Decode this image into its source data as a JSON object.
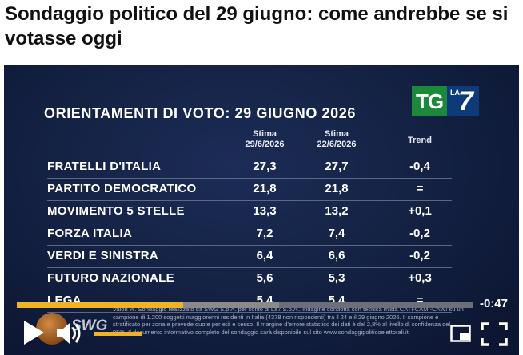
{
  "article": {
    "headline": "Sondaggio politico del 29 giugno: come andrebbe se si votasse oggi"
  },
  "video": {
    "logo_tg": "TG",
    "logo_la": "LA",
    "logo_7": "7",
    "poll_title": "ORIENTAMENTI DI VOTO: 29 GIUGNO 2026",
    "columns": [
      {
        "line1": "Stima",
        "line2": "29/6/2026"
      },
      {
        "line1": "Stima",
        "line2": "22/6/2026"
      },
      {
        "line1": "Trend",
        "line2": ""
      }
    ],
    "rows": [
      {
        "party": "FRATELLI D'ITALIA",
        "current": "27,3",
        "previous": "27,7",
        "trend": "-0,4"
      },
      {
        "party": "PARTITO DEMOCRATICO",
        "current": "21,8",
        "previous": "21,8",
        "trend": "="
      },
      {
        "party": "MOVIMENTO 5 STELLE",
        "current": "13,3",
        "previous": "13,2",
        "trend": "+0,1"
      },
      {
        "party": "FORZA ITALIA",
        "current": "7,2",
        "previous": "7,4",
        "trend": "-0,2"
      },
      {
        "party": "VERDI E SINISTRA",
        "current": "6,4",
        "previous": "6,6",
        "trend": "-0,2"
      },
      {
        "party": "FUTURO NAZIONALE",
        "current": "5,6",
        "previous": "5,3",
        "trend": "+0,3"
      },
      {
        "party": "LEGA",
        "current": "5,4",
        "previous": "5,4",
        "trend": "="
      }
    ],
    "note": "Valori %. Sondaggio realizzato da SWG S.p.A. per conto di La7 S.p.A.. Indagine condotta con tecnica mista CATI-CAMI-CAWI su un campione di 1.200 soggetti maggiorenni residenti in Italia (4378 non rispondenti) tra il 24 e il 29 giugno 2026. Il campione è stratificato per zona e prevede quote per età e sesso. Il margine d'errore statistico dei dati è del 2,8% al livello di confidenza del 95%. Il documento informativo completo del sondaggio sarà disponibile sul sito www.sondaggipoliticoelettorali.it.",
    "swg_label": "SWG"
  },
  "player": {
    "time_remaining": "-0:47",
    "progress_played": 0.365,
    "progress_buffered": 0.575,
    "volume_level": 1.0,
    "accent_color": "#f0b323",
    "icons": [
      "play-icon",
      "volume-icon",
      "picture-in-picture-icon",
      "fullscreen-icon"
    ]
  }
}
